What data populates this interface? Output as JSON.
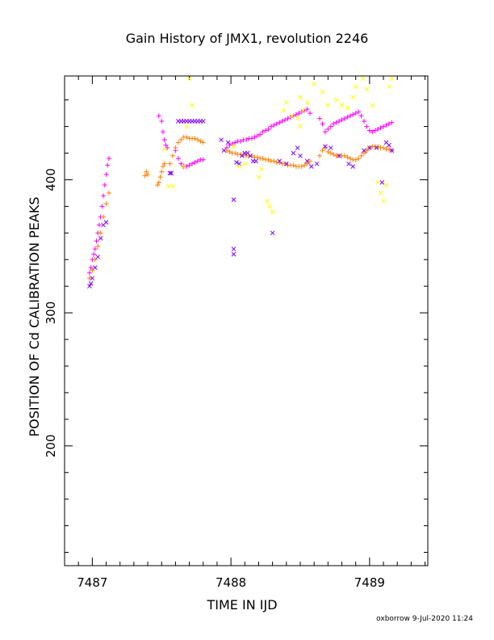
{
  "chart_data": {
    "type": "scatter",
    "title": "Gain History of JMX1, revolution 2246",
    "xlabel": "TIME IN IJD",
    "ylabel": "POSITION OF Cd CALIBRATION PEAKS",
    "xlim": [
      7486.8,
      7489.42
    ],
    "ylim": [
      110,
      478
    ],
    "x_ticks": [
      7487,
      7488,
      7489
    ],
    "x_tick_labels": [
      "7487",
      "7488",
      "7489"
    ],
    "y_ticks": [
      200,
      300,
      400
    ],
    "y_tick_labels": [
      "200",
      "300",
      "400"
    ],
    "grid": false,
    "legend": "none",
    "footer": "oxborrow  9-Jul-2020 11:24",
    "series": [
      {
        "color": "#ff00ff",
        "marker": "+",
        "points": [
          [
            7486.98,
            330
          ],
          [
            7486.99,
            334
          ],
          [
            7487.0,
            340
          ],
          [
            7487.01,
            344
          ],
          [
            7487.02,
            348
          ],
          [
            7487.03,
            354
          ],
          [
            7487.04,
            360
          ],
          [
            7487.05,
            366
          ],
          [
            7487.06,
            372
          ],
          [
            7487.07,
            380
          ],
          [
            7487.08,
            388
          ],
          [
            7487.09,
            396
          ],
          [
            7487.1,
            404
          ],
          [
            7487.11,
            411
          ],
          [
            7487.12,
            416
          ],
          [
            7487.48,
            448
          ],
          [
            7487.5,
            444
          ],
          [
            7487.51,
            436
          ],
          [
            7487.52,
            430
          ],
          [
            7487.53,
            426
          ],
          [
            7487.54,
            424
          ],
          [
            7487.6,
            422
          ],
          [
            7487.62,
            416
          ],
          [
            7487.64,
            412
          ],
          [
            7487.66,
            410
          ],
          [
            7487.68,
            410
          ],
          [
            7487.7,
            411
          ],
          [
            7487.72,
            412
          ],
          [
            7487.74,
            413
          ],
          [
            7487.76,
            414
          ],
          [
            7487.78,
            415
          ],
          [
            7487.8,
            415
          ],
          [
            7487.97,
            424
          ],
          [
            7487.99,
            426
          ],
          [
            7488.01,
            427
          ],
          [
            7488.03,
            428
          ],
          [
            7488.05,
            429
          ],
          [
            7488.07,
            429
          ],
          [
            7488.09,
            430
          ],
          [
            7488.11,
            430
          ],
          [
            7488.13,
            431
          ],
          [
            7488.15,
            431
          ],
          [
            7488.17,
            432
          ],
          [
            7488.19,
            433
          ],
          [
            7488.21,
            434
          ],
          [
            7488.23,
            436
          ],
          [
            7488.25,
            437
          ],
          [
            7488.27,
            438
          ],
          [
            7488.29,
            440
          ],
          [
            7488.31,
            441
          ],
          [
            7488.33,
            442
          ],
          [
            7488.35,
            443
          ],
          [
            7488.37,
            444
          ],
          [
            7488.39,
            445
          ],
          [
            7488.41,
            446
          ],
          [
            7488.43,
            447
          ],
          [
            7488.45,
            448
          ],
          [
            7488.47,
            449
          ],
          [
            7488.49,
            450
          ],
          [
            7488.51,
            451
          ],
          [
            7488.53,
            452
          ],
          [
            7488.55,
            453
          ],
          [
            7488.57,
            450
          ],
          [
            7488.64,
            446
          ],
          [
            7488.66,
            442
          ],
          [
            7488.68,
            436
          ],
          [
            7488.7,
            438
          ],
          [
            7488.72,
            440
          ],
          [
            7488.74,
            442
          ],
          [
            7488.76,
            443
          ],
          [
            7488.78,
            444
          ],
          [
            7488.8,
            445
          ],
          [
            7488.82,
            446
          ],
          [
            7488.84,
            447
          ],
          [
            7488.86,
            448
          ],
          [
            7488.88,
            449
          ],
          [
            7488.9,
            450
          ],
          [
            7488.92,
            451
          ],
          [
            7488.94,
            448
          ],
          [
            7488.96,
            444
          ],
          [
            7488.98,
            440
          ],
          [
            7489.0,
            437
          ],
          [
            7489.02,
            436
          ],
          [
            7489.04,
            437
          ],
          [
            7489.06,
            438
          ],
          [
            7489.08,
            439
          ],
          [
            7489.1,
            440
          ],
          [
            7489.12,
            441
          ],
          [
            7489.14,
            442
          ],
          [
            7489.16,
            443
          ]
        ]
      },
      {
        "color": "#ff7f00",
        "marker": "+",
        "points": [
          [
            7486.98,
            326
          ],
          [
            7487.0,
            332
          ],
          [
            7487.02,
            340
          ],
          [
            7487.04,
            350
          ],
          [
            7487.06,
            360
          ],
          [
            7487.08,
            372
          ],
          [
            7487.1,
            382
          ],
          [
            7487.12,
            390
          ],
          [
            7487.38,
            403
          ],
          [
            7487.39,
            406
          ],
          [
            7487.4,
            404
          ],
          [
            7487.47,
            396
          ],
          [
            7487.48,
            398
          ],
          [
            7487.49,
            402
          ],
          [
            7487.5,
            406
          ],
          [
            7487.51,
            410
          ],
          [
            7487.52,
            412
          ],
          [
            7487.56,
            412
          ],
          [
            7487.58,
            418
          ],
          [
            7487.6,
            424
          ],
          [
            7487.62,
            428
          ],
          [
            7487.64,
            430
          ],
          [
            7487.66,
            432
          ],
          [
            7487.68,
            432
          ],
          [
            7487.7,
            431
          ],
          [
            7487.72,
            431
          ],
          [
            7487.74,
            431
          ],
          [
            7487.76,
            430
          ],
          [
            7487.78,
            429
          ],
          [
            7487.8,
            428
          ],
          [
            7487.97,
            422
          ],
          [
            7487.99,
            421
          ],
          [
            7488.01,
            420
          ],
          [
            7488.03,
            420
          ],
          [
            7488.05,
            419
          ],
          [
            7488.07,
            419
          ],
          [
            7488.09,
            419
          ],
          [
            7488.11,
            418
          ],
          [
            7488.13,
            418
          ],
          [
            7488.15,
            418
          ],
          [
            7488.17,
            417
          ],
          [
            7488.19,
            417
          ],
          [
            7488.21,
            416
          ],
          [
            7488.23,
            416
          ],
          [
            7488.25,
            415
          ],
          [
            7488.27,
            415
          ],
          [
            7488.29,
            414
          ],
          [
            7488.31,
            414
          ],
          [
            7488.33,
            413
          ],
          [
            7488.35,
            413
          ],
          [
            7488.37,
            412
          ],
          [
            7488.39,
            412
          ],
          [
            7488.41,
            411
          ],
          [
            7488.43,
            411
          ],
          [
            7488.45,
            411
          ],
          [
            7488.47,
            410
          ],
          [
            7488.49,
            410
          ],
          [
            7488.51,
            410
          ],
          [
            7488.53,
            411
          ],
          [
            7488.55,
            412
          ],
          [
            7488.57,
            414
          ],
          [
            7488.64,
            418
          ],
          [
            7488.66,
            422
          ],
          [
            7488.68,
            424
          ],
          [
            7488.7,
            421
          ],
          [
            7488.72,
            420
          ],
          [
            7488.74,
            419
          ],
          [
            7488.76,
            418
          ],
          [
            7488.78,
            418
          ],
          [
            7488.8,
            418
          ],
          [
            7488.82,
            418
          ],
          [
            7488.84,
            417
          ],
          [
            7488.86,
            416
          ],
          [
            7488.88,
            415
          ],
          [
            7488.9,
            415
          ],
          [
            7488.92,
            416
          ],
          [
            7488.94,
            418
          ],
          [
            7488.96,
            420
          ],
          [
            7488.98,
            422
          ],
          [
            7489.0,
            424
          ],
          [
            7489.02,
            425
          ],
          [
            7489.04,
            425
          ],
          [
            7489.06,
            425
          ],
          [
            7489.08,
            424
          ],
          [
            7489.1,
            424
          ],
          [
            7489.12,
            423
          ],
          [
            7489.14,
            423
          ],
          [
            7489.16,
            422
          ]
        ]
      },
      {
        "color": "#7f00ff",
        "marker": "x",
        "points": [
          [
            7486.98,
            320
          ],
          [
            7486.99,
            322
          ],
          [
            7487.0,
            326
          ],
          [
            7487.02,
            334
          ],
          [
            7487.04,
            342
          ],
          [
            7487.06,
            356
          ],
          [
            7487.08,
            366
          ],
          [
            7487.1,
            368
          ],
          [
            7487.56,
            405
          ],
          [
            7487.57,
            405
          ],
          [
            7487.62,
            444
          ],
          [
            7487.64,
            444
          ],
          [
            7487.66,
            444
          ],
          [
            7487.68,
            444
          ],
          [
            7487.7,
            444
          ],
          [
            7487.72,
            444
          ],
          [
            7487.74,
            444
          ],
          [
            7487.76,
            444
          ],
          [
            7487.78,
            444
          ],
          [
            7487.8,
            444
          ],
          [
            7487.93,
            430
          ],
          [
            7487.95,
            422
          ],
          [
            7487.98,
            428
          ],
          [
            7488.02,
            385
          ],
          [
            7488.04,
            413
          ],
          [
            7488.06,
            412
          ],
          [
            7488.08,
            418
          ],
          [
            7488.1,
            420
          ],
          [
            7488.12,
            420
          ],
          [
            7488.14,
            418
          ],
          [
            7488.16,
            414
          ],
          [
            7488.18,
            414
          ],
          [
            7488.02,
            348
          ],
          [
            7488.02,
            344
          ],
          [
            7488.3,
            360
          ],
          [
            7488.35,
            414
          ],
          [
            7488.4,
            412
          ],
          [
            7488.45,
            420
          ],
          [
            7488.5,
            418
          ],
          [
            7488.48,
            424
          ],
          [
            7488.55,
            414
          ],
          [
            7488.58,
            410
          ],
          [
            7488.62,
            412
          ],
          [
            7488.68,
            425
          ],
          [
            7488.72,
            424
          ],
          [
            7488.78,
            418
          ],
          [
            7488.85,
            412
          ],
          [
            7488.88,
            410
          ],
          [
            7488.96,
            422
          ],
          [
            7489.0,
            424
          ],
          [
            7489.05,
            424
          ],
          [
            7489.09,
            398
          ],
          [
            7489.12,
            428
          ],
          [
            7489.14,
            426
          ],
          [
            7489.16,
            422
          ]
        ]
      },
      {
        "color": "#ffff00",
        "marker": "x",
        "points": [
          [
            7487.52,
            423
          ],
          [
            7487.55,
            395
          ],
          [
            7487.58,
            395
          ],
          [
            7487.66,
            410
          ],
          [
            7487.68,
            440
          ],
          [
            7487.7,
            476
          ],
          [
            7487.72,
            456
          ],
          [
            7488.02,
            425
          ],
          [
            7488.06,
            410
          ],
          [
            7488.1,
            412
          ],
          [
            7488.2,
            402
          ],
          [
            7488.22,
            408
          ],
          [
            7488.26,
            384
          ],
          [
            7488.28,
            380
          ],
          [
            7488.3,
            376
          ],
          [
            7488.38,
            452
          ],
          [
            7488.4,
            458
          ],
          [
            7488.44,
            448
          ],
          [
            7488.48,
            446
          ],
          [
            7488.5,
            440
          ],
          [
            7488.52,
            452
          ],
          [
            7488.55,
            458
          ],
          [
            7488.5,
            462
          ],
          [
            7488.6,
            472
          ],
          [
            7488.66,
            466
          ],
          [
            7488.7,
            456
          ],
          [
            7488.76,
            460
          ],
          [
            7488.8,
            456
          ],
          [
            7488.84,
            454
          ],
          [
            7488.88,
            462
          ],
          [
            7488.9,
            470
          ],
          [
            7488.95,
            476
          ],
          [
            7488.98,
            468
          ],
          [
            7489.02,
            456
          ],
          [
            7489.06,
            398
          ],
          [
            7489.08,
            390
          ],
          [
            7489.1,
            384
          ],
          [
            7489.12,
            396
          ],
          [
            7489.14,
            470
          ],
          [
            7489.16,
            476
          ]
        ]
      }
    ]
  }
}
